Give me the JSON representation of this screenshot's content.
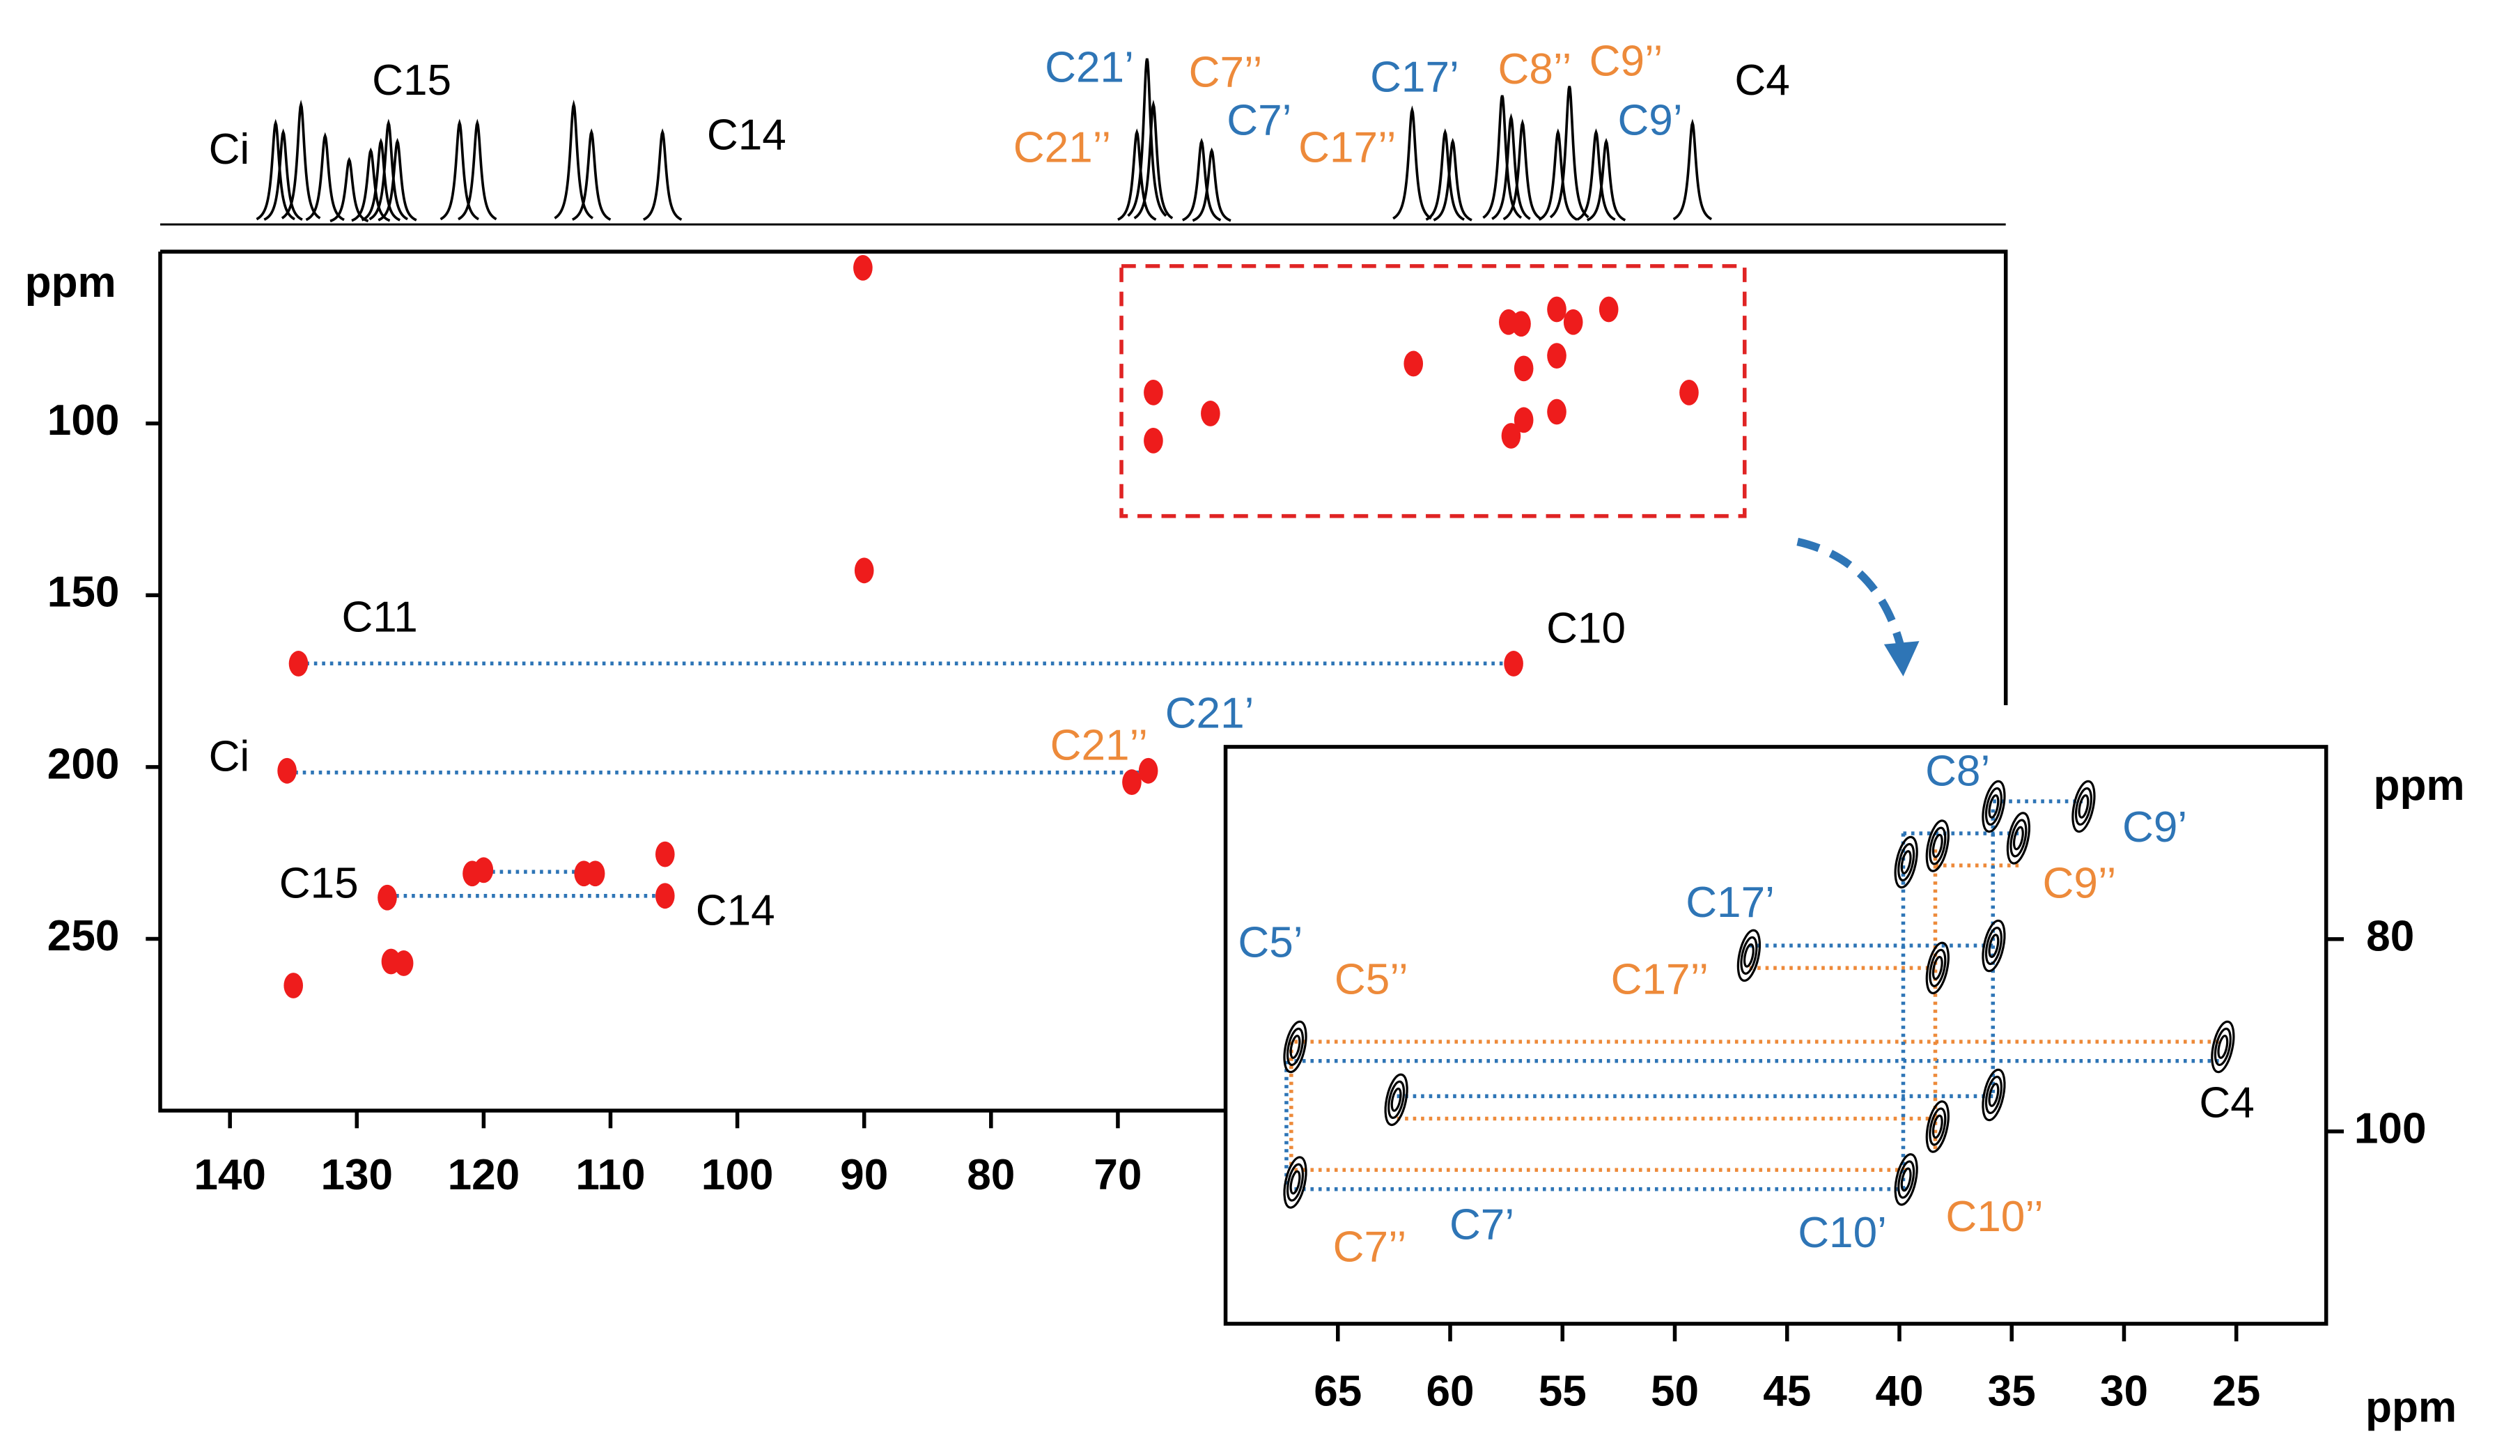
{
  "chart_data": [
    {
      "type": "spectrum",
      "xlim": [
        145.5,
        0
      ],
      "color": "#000000",
      "x": [
        136.4,
        135.8,
        134.4,
        132.5,
        130.6,
        128.9,
        128.1,
        127.5,
        126.8,
        121.9,
        120.5,
        112.9,
        111.5,
        105.9,
        68.5,
        67.7,
        67.2,
        63.4,
        62.6,
        46.8,
        44.2,
        43.6,
        39.7,
        39.0,
        38.1,
        35.3,
        34.4,
        32.3,
        31.5,
        24.7
      ],
      "values": [
        55,
        50,
        65,
        48,
        35,
        40,
        45,
        55,
        45,
        55,
        55,
        65,
        50,
        50,
        50,
        90,
        65,
        45,
        40,
        62,
        50,
        45,
        70,
        58,
        55,
        50,
        75,
        50,
        45,
        55
      ],
      "annotations": [
        {
          "text": "Ci",
          "color": "#000000"
        },
        {
          "text": "C15",
          "color": "#000000"
        },
        {
          "text": "C14",
          "color": "#000000"
        },
        {
          "text": "C21’",
          "color": "#2e75b6"
        },
        {
          "text": "C21’’",
          "color": "#ed8a3a"
        },
        {
          "text": "C7’’",
          "color": "#ed8a3a"
        },
        {
          "text": "C7’",
          "color": "#2e75b6"
        },
        {
          "text": "C17’",
          "color": "#2e75b6"
        },
        {
          "text": "C17’’",
          "color": "#ed8a3a"
        },
        {
          "text": "C8’’",
          "color": "#ed8a3a"
        },
        {
          "text": "C9’’",
          "color": "#ed8a3a"
        },
        {
          "text": "C9’",
          "color": "#2e75b6"
        },
        {
          "text": "C4",
          "color": "#000000"
        }
      ]
    },
    {
      "type": "scatter",
      "ylabel": "ppm",
      "xlim": [
        145.5,
        0
      ],
      "ylim": [
        50,
        300
      ],
      "xticks": [
        140,
        130,
        120,
        110,
        100,
        90,
        80,
        70
      ],
      "yticks": [
        100,
        150,
        200,
        250
      ],
      "color": "#ee1c1c",
      "x": [
        90.1,
        90.0,
        134.6,
        38.8,
        135.5,
        68.9,
        67.6,
        127.6,
        120.9,
        120.0,
        112.1,
        111.2,
        105.7,
        105.7,
        127.3,
        126.3,
        135.0,
        67.2,
        67.2,
        62.7,
        46.7,
        39.2,
        38.2,
        39.0,
        38.0,
        38.0,
        35.4,
        34.1,
        31.3,
        35.4,
        35.4,
        24.97
      ],
      "y": [
        54.7,
        142.8,
        169.9,
        169.9,
        201.1,
        204.4,
        201.1,
        238,
        231,
        230,
        231,
        231,
        225.4,
        237.5,
        256.6,
        257.1,
        263.6,
        91,
        105,
        97.1,
        82.6,
        70.5,
        71,
        103.6,
        99,
        84,
        66.8,
        70.5,
        66.8,
        80.3,
        96.6,
        91
      ],
      "annotations": [
        {
          "text": "C11",
          "color": "#000000"
        },
        {
          "text": "C10",
          "color": "#000000"
        },
        {
          "text": "Ci",
          "color": "#000000"
        },
        {
          "text": "C21’’",
          "color": "#ed8a3a"
        },
        {
          "text": "C21’",
          "color": "#2e75b6"
        },
        {
          "text": "C15",
          "color": "#000000"
        },
        {
          "text": "C14",
          "color": "#000000"
        }
      ]
    },
    {
      "type": "contour",
      "xlabel": "ppm",
      "ylabel": "ppm",
      "xlim": [
        70,
        21
      ],
      "ylim": [
        60,
        120
      ],
      "xticks": [
        65,
        60,
        55,
        50,
        45,
        40,
        35,
        30,
        25
      ],
      "yticks": [
        80,
        100
      ],
      "color": "#000000",
      "x": [
        66.9,
        66.9,
        62.4,
        46.7,
        39.7,
        38.3,
        39.7,
        38.3,
        38.3,
        35.8,
        34.7,
        31.8,
        35.8,
        35.8,
        25.6
      ],
      "y": [
        91.2,
        105.3,
        96.7,
        81.7,
        72,
        70.3,
        105,
        83,
        99.5,
        66.2,
        69.5,
        66.2,
        80.7,
        96.2,
        91.2
      ],
      "annotations": [
        {
          "text": "C8’",
          "color": "#2e75b6"
        },
        {
          "text": "C9’",
          "color": "#2e75b6"
        },
        {
          "text": "C9’’",
          "color": "#ed8a3a"
        },
        {
          "text": "C17’",
          "color": "#2e75b6"
        },
        {
          "text": "C17’’",
          "color": "#ed8a3a"
        },
        {
          "text": "C5’",
          "color": "#2e75b6"
        },
        {
          "text": "C5’’",
          "color": "#ed8a3a"
        },
        {
          "text": "C4",
          "color": "#000000"
        },
        {
          "text": "C7’’",
          "color": "#ed8a3a"
        },
        {
          "text": "C7’",
          "color": "#2e75b6"
        },
        {
          "text": "C10’",
          "color": "#2e75b6"
        },
        {
          "text": "C10’’",
          "color": "#ed8a3a"
        }
      ]
    }
  ]
}
